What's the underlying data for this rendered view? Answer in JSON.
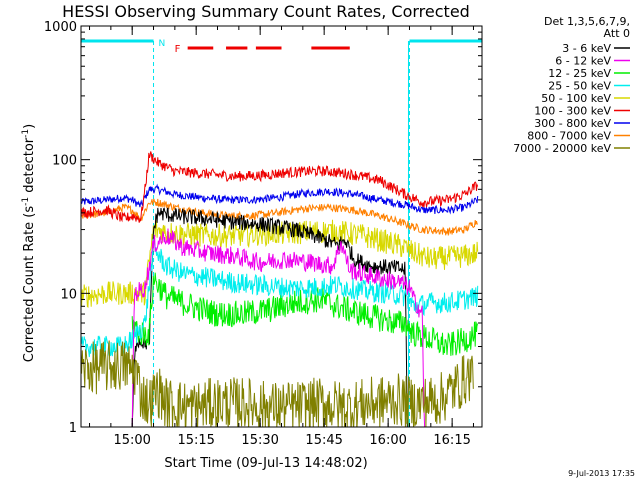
{
  "chart_data": {
    "type": "line",
    "title": "HESSI Observing Summary Count Rates, Corrected",
    "xlabel": "Start Time (09-Jul-13 14:48:02)",
    "ylabel_main": "Corrected Count Rate (s",
    "ylabel_mid": " detector",
    "ylabel_close": ")",
    "ylabel_sup": "-1",
    "yscale": "log",
    "ylim": [
      1,
      1000
    ],
    "y_ticks": [
      {
        "value": 1,
        "label": "1"
      },
      {
        "value": 10,
        "label": "10"
      },
      {
        "value": 100,
        "label": "100"
      },
      {
        "value": 1000,
        "label": "1000"
      }
    ],
    "xlim_min": [
      0,
      94
    ],
    "x_ticks": [
      {
        "value": 12,
        "label": "15:00"
      },
      {
        "value": 27,
        "label": "15:15"
      },
      {
        "value": 42,
        "label": "15:30"
      },
      {
        "value": 57,
        "label": "15:45"
      },
      {
        "value": 72,
        "label": "16:00"
      },
      {
        "value": 87,
        "label": "16:15"
      }
    ],
    "legend_header_1": "Det 1,3,5,6,7,9,",
    "legend_header_2": "Att 0",
    "flags": {
      "night_label": "N",
      "flare_label": "F",
      "night_color": "#00e5ee",
      "flare_color": "#ee0000",
      "night_segments": [
        [
          0,
          17
        ],
        [
          77,
          94
        ]
      ],
      "flare_segments": [
        [
          25,
          31
        ],
        [
          34,
          39
        ],
        [
          41,
          47
        ],
        [
          54,
          63
        ]
      ],
      "day_boundaries": [
        17,
        77
      ]
    },
    "footer_date": "9-Jul-2013 17:35",
    "series": [
      {
        "name": "3 - 6 keV",
        "color": "#000000",
        "noise": 0.06,
        "points": [
          [
            0,
            1
          ],
          [
            12,
            1
          ],
          [
            12.5,
            3
          ],
          [
            13,
            4.5
          ],
          [
            16,
            4.2
          ],
          [
            17,
            30
          ],
          [
            18,
            40
          ],
          [
            22,
            38
          ],
          [
            30,
            36
          ],
          [
            36,
            34
          ],
          [
            42,
            33
          ],
          [
            50,
            30
          ],
          [
            56,
            26
          ],
          [
            60,
            23
          ],
          [
            62,
            25
          ],
          [
            64,
            18
          ],
          [
            68,
            16
          ],
          [
            74,
            15.5
          ],
          [
            76,
            15
          ],
          [
            76.5,
            1
          ],
          [
            94,
            1
          ]
        ]
      },
      {
        "name": "6 - 12 keV",
        "color": "#ee00ee",
        "noise": 0.07,
        "points": [
          [
            0,
            1
          ],
          [
            12,
            1
          ],
          [
            12.5,
            10
          ],
          [
            15,
            11
          ],
          [
            17,
            23
          ],
          [
            20,
            27
          ],
          [
            24,
            22
          ],
          [
            30,
            20
          ],
          [
            36,
            19
          ],
          [
            42,
            17
          ],
          [
            48,
            18
          ],
          [
            54,
            17
          ],
          [
            59,
            16
          ],
          [
            61,
            24
          ],
          [
            63,
            15
          ],
          [
            66,
            14
          ],
          [
            70,
            13
          ],
          [
            75,
            12
          ],
          [
            77,
            11
          ],
          [
            78,
            9
          ],
          [
            80,
            7
          ],
          [
            80.5,
            1
          ],
          [
            94,
            1
          ]
        ]
      },
      {
        "name": "12 - 25 keV",
        "color": "#00ee00",
        "noise": 0.1,
        "points": [
          [
            12,
            6
          ],
          [
            14,
            5
          ],
          [
            16,
            5
          ],
          [
            17,
            13
          ],
          [
            20,
            9.5
          ],
          [
            26,
            8
          ],
          [
            32,
            7
          ],
          [
            38,
            7
          ],
          [
            44,
            7.5
          ],
          [
            50,
            8.5
          ],
          [
            56,
            9
          ],
          [
            60,
            8
          ],
          [
            66,
            7
          ],
          [
            70,
            6.5
          ],
          [
            74,
            6
          ],
          [
            76,
            6
          ],
          [
            78,
            5
          ],
          [
            82,
            4.5
          ],
          [
            86,
            4
          ],
          [
            90,
            4.5
          ],
          [
            93,
            5
          ]
        ]
      },
      {
        "name": "25 - 50 keV",
        "color": "#00eeee",
        "noise": 0.08,
        "points": [
          [
            0,
            4
          ],
          [
            10,
            4
          ],
          [
            12,
            4.5
          ],
          [
            15,
            6
          ],
          [
            17,
            22
          ],
          [
            20,
            16
          ],
          [
            24,
            14
          ],
          [
            30,
            13
          ],
          [
            36,
            12
          ],
          [
            42,
            11.5
          ],
          [
            48,
            11
          ],
          [
            54,
            11
          ],
          [
            60,
            11.5
          ],
          [
            66,
            10.5
          ],
          [
            72,
            10
          ],
          [
            76,
            9.5
          ],
          [
            78,
            8
          ],
          [
            82,
            8.5
          ],
          [
            86,
            8.5
          ],
          [
            90,
            9
          ],
          [
            93,
            9.5
          ]
        ]
      },
      {
        "name": "50 - 100 keV",
        "color": "#d8d800",
        "noise": 0.09,
        "points": [
          [
            0,
            9.5
          ],
          [
            6,
            10
          ],
          [
            12,
            10
          ],
          [
            15,
            10
          ],
          [
            17,
            30
          ],
          [
            22,
            28
          ],
          [
            30,
            27
          ],
          [
            36,
            27
          ],
          [
            42,
            28
          ],
          [
            48,
            28
          ],
          [
            54,
            29
          ],
          [
            60,
            29
          ],
          [
            66,
            27
          ],
          [
            72,
            24
          ],
          [
            76,
            22
          ],
          [
            78,
            20
          ],
          [
            82,
            18
          ],
          [
            86,
            18.5
          ],
          [
            90,
            19
          ],
          [
            93,
            20
          ]
        ]
      },
      {
        "name": "100 - 300 keV",
        "color": "#ee0000",
        "noise": 0.04,
        "points": [
          [
            0,
            40
          ],
          [
            6,
            42
          ],
          [
            10,
            36
          ],
          [
            12,
            38
          ],
          [
            14,
            36
          ],
          [
            15,
            60
          ],
          [
            16,
            110
          ],
          [
            18,
            95
          ],
          [
            22,
            82
          ],
          [
            30,
            78
          ],
          [
            36,
            75
          ],
          [
            42,
            76
          ],
          [
            48,
            80
          ],
          [
            54,
            82
          ],
          [
            58,
            82
          ],
          [
            64,
            77
          ],
          [
            70,
            70
          ],
          [
            76,
            55
          ],
          [
            80,
            48
          ],
          [
            86,
            50
          ],
          [
            90,
            55
          ],
          [
            93,
            65
          ]
        ]
      },
      {
        "name": "300 - 800 keV",
        "color": "#0000ee",
        "noise": 0.03,
        "points": [
          [
            0,
            48
          ],
          [
            6,
            50
          ],
          [
            10,
            52
          ],
          [
            12,
            50
          ],
          [
            14,
            45
          ],
          [
            16,
            60
          ],
          [
            18,
            60
          ],
          [
            22,
            55
          ],
          [
            28,
            52
          ],
          [
            34,
            50
          ],
          [
            40,
            50
          ],
          [
            46,
            52
          ],
          [
            52,
            56
          ],
          [
            58,
            58
          ],
          [
            64,
            55
          ],
          [
            70,
            50
          ],
          [
            76,
            46
          ],
          [
            80,
            42
          ],
          [
            86,
            42
          ],
          [
            90,
            44
          ],
          [
            93,
            50
          ]
        ]
      },
      {
        "name": "800 - 7000 keV",
        "color": "#ff8000",
        "noise": 0.03,
        "points": [
          [
            0,
            38
          ],
          [
            6,
            40
          ],
          [
            10,
            44
          ],
          [
            12,
            42
          ],
          [
            14,
            36
          ],
          [
            16,
            48
          ],
          [
            18,
            48
          ],
          [
            22,
            44
          ],
          [
            28,
            40
          ],
          [
            34,
            38
          ],
          [
            40,
            38
          ],
          [
            46,
            40
          ],
          [
            52,
            43
          ],
          [
            58,
            44
          ],
          [
            64,
            42
          ],
          [
            70,
            38
          ],
          [
            76,
            33
          ],
          [
            80,
            30
          ],
          [
            86,
            29
          ],
          [
            90,
            30
          ],
          [
            93,
            35
          ]
        ]
      },
      {
        "name": "7000 - 20000 keV",
        "color": "#808000",
        "noise": 0.2,
        "points": [
          [
            0,
            2.7
          ],
          [
            10,
            2.9
          ],
          [
            13,
            2.6
          ],
          [
            14,
            1.8
          ],
          [
            16,
            1.5
          ],
          [
            18,
            1.9
          ],
          [
            20,
            1.5
          ],
          [
            26,
            1.4
          ],
          [
            32,
            1.5
          ],
          [
            38,
            1.5
          ],
          [
            44,
            1.4
          ],
          [
            50,
            1.4
          ],
          [
            56,
            1.5
          ],
          [
            62,
            1.4
          ],
          [
            68,
            1.5
          ],
          [
            74,
            1.6
          ],
          [
            78,
            1.5
          ],
          [
            84,
            1.6
          ],
          [
            88,
            2.0
          ],
          [
            92,
            2.6
          ]
        ]
      }
    ]
  }
}
